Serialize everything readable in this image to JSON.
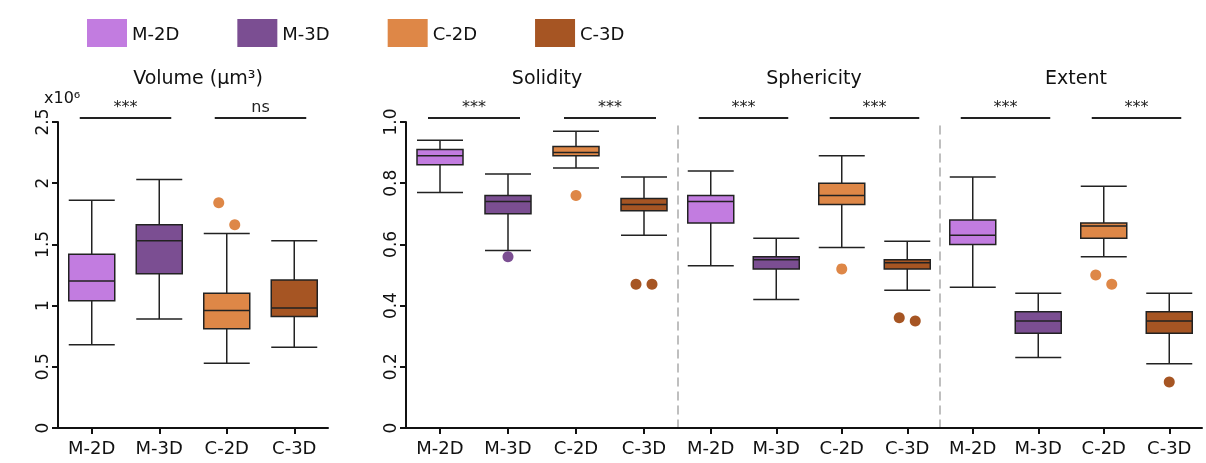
{
  "chart_data": [
    {
      "type": "box",
      "title": "Volume (µm³)",
      "ylabel": "x10⁶",
      "categories": [
        "M-2D",
        "M-3D",
        "C-2D",
        "C-3D"
      ],
      "legend": "top",
      "grid": false,
      "ylim": [
        0,
        2.5
      ],
      "yticks": [
        0,
        0.5,
        1,
        1.5,
        2,
        2.5
      ],
      "series": [
        {
          "name": "M-2D",
          "color": "#c27ce0",
          "boxes": [
            {
              "low": 0.68,
              "q1": 1.04,
              "median": 1.2,
              "q3": 1.42,
              "high": 1.86
            },
            null,
            null,
            null
          ]
        },
        {
          "name": "M-3D",
          "color": "#7b4e92",
          "boxes": [
            null,
            {
              "low": 0.89,
              "q1": 1.26,
              "median": 1.53,
              "q3": 1.66,
              "high": 2.03
            },
            null,
            null
          ]
        },
        {
          "name": "C-2D",
          "color": "#de8747",
          "boxes": [
            null,
            null,
            {
              "low": 0.53,
              "q1": 0.81,
              "median": 0.96,
              "q3": 1.1,
              "high": 1.59,
              "outliers": [
                1.84,
                1.66
              ]
            },
            null
          ]
        },
        {
          "name": "C-3D",
          "color": "#a65523",
          "boxes": [
            null,
            null,
            null,
            {
              "low": 0.66,
              "q1": 0.91,
              "median": 0.98,
              "q3": 1.21,
              "high": 1.53
            }
          ]
        }
      ],
      "annotations": [
        "***",
        "ns"
      ]
    },
    {
      "type": "box",
      "title": "Solidity",
      "categories": [
        "M-2D",
        "M-3D",
        "C-2D",
        "C-3D"
      ],
      "grid": false,
      "ylim": [
        0,
        1
      ],
      "yticks": [
        0,
        0.2,
        0.4,
        0.6,
        0.8,
        {
          "value": 1,
          "label": "1.0"
        }
      ],
      "series": [
        {
          "color": "#c27ce0",
          "boxes": [
            {
              "low": 0.77,
              "q1": 0.86,
              "median": 0.89,
              "q3": 0.91,
              "high": 0.94
            },
            null,
            null,
            null
          ]
        },
        {
          "color": "#7b4e92",
          "boxes": [
            null,
            {
              "low": 0.58,
              "q1": 0.7,
              "median": 0.74,
              "q3": 0.76,
              "high": 0.83,
              "outliers": [
                0.56
              ]
            },
            null,
            null
          ]
        },
        {
          "color": "#de8747",
          "boxes": [
            null,
            null,
            {
              "low": 0.85,
              "q1": 0.89,
              "median": 0.9,
              "q3": 0.92,
              "high": 0.97,
              "outliers": [
                0.76
              ]
            },
            null
          ]
        },
        {
          "color": "#a65523",
          "boxes": [
            null,
            null,
            null,
            {
              "low": 0.63,
              "q1": 0.71,
              "median": 0.73,
              "q3": 0.75,
              "high": 0.82,
              "outliers": [
                0.47,
                0.47
              ]
            }
          ]
        }
      ],
      "annotations": [
        "***",
        "***"
      ]
    },
    {
      "type": "box",
      "title": "Sphericity",
      "categories": [
        "M-2D",
        "M-3D",
        "C-2D",
        "C-3D"
      ],
      "grid": false,
      "tick_labels": "x",
      "ylim": [
        0,
        1
      ],
      "series": [
        {
          "color": "#c27ce0",
          "boxes": [
            {
              "low": 0.53,
              "q1": 0.67,
              "median": 0.74,
              "q3": 0.76,
              "high": 0.84
            },
            null,
            null,
            null
          ]
        },
        {
          "color": "#7b4e92",
          "boxes": [
            null,
            {
              "low": 0.42,
              "q1": 0.52,
              "median": 0.55,
              "q3": 0.56,
              "high": 0.62
            },
            null,
            null
          ]
        },
        {
          "color": "#de8747",
          "boxes": [
            null,
            null,
            {
              "low": 0.59,
              "q1": 0.73,
              "median": 0.76,
              "q3": 0.8,
              "high": 0.89,
              "outliers": [
                0.52
              ]
            },
            null
          ]
        },
        {
          "color": "#a65523",
          "boxes": [
            null,
            null,
            null,
            {
              "low": 0.45,
              "q1": 0.52,
              "median": 0.54,
              "q3": 0.55,
              "high": 0.61,
              "outliers": [
                0.36,
                0.35
              ]
            }
          ]
        }
      ],
      "annotations": [
        "***",
        "***"
      ]
    },
    {
      "type": "box",
      "title": "Extent",
      "categories": [
        "M-2D",
        "M-3D",
        "C-2D",
        "C-3D"
      ],
      "grid": false,
      "tick_labels": "x",
      "ylim": [
        0,
        1
      ],
      "series": [
        {
          "color": "#c27ce0",
          "boxes": [
            {
              "low": 0.46,
              "q1": 0.6,
              "median": 0.63,
              "q3": 0.68,
              "high": 0.82
            },
            null,
            null,
            null
          ]
        },
        {
          "color": "#7b4e92",
          "boxes": [
            null,
            {
              "low": 0.23,
              "q1": 0.31,
              "median": 0.35,
              "q3": 0.38,
              "high": 0.44
            },
            null,
            null
          ]
        },
        {
          "color": "#de8747",
          "boxes": [
            null,
            null,
            {
              "low": 0.56,
              "q1": 0.62,
              "median": 0.66,
              "q3": 0.67,
              "high": 0.79,
              "outliers": [
                0.5,
                0.47
              ]
            },
            null
          ]
        },
        {
          "color": "#a65523",
          "boxes": [
            null,
            null,
            null,
            {
              "low": 0.21,
              "q1": 0.31,
              "median": 0.35,
              "q3": 0.38,
              "high": 0.44,
              "outliers": [
                0.15
              ]
            }
          ]
        }
      ],
      "annotations": [
        "***",
        "***"
      ]
    }
  ]
}
